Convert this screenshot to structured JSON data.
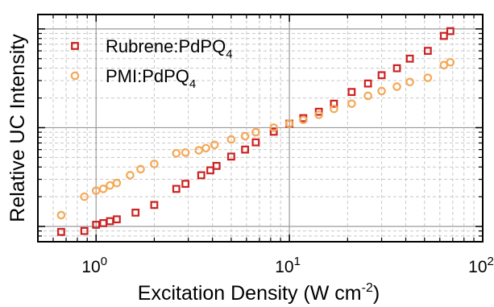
{
  "chart_data": {
    "type": "scatter",
    "xlabel": {
      "main": "Excitation Density (W cm",
      "sup": "-2",
      "tail": ")"
    },
    "ylabel": "Relative UC Intensity",
    "x_scale": "log",
    "y_scale": "log",
    "xlim": [
      0.5,
      100
    ],
    "ylim": [
      0.7,
      140
    ],
    "x_ticks": [
      {
        "value": 1,
        "base": "10",
        "exp": "0"
      },
      {
        "value": 10,
        "base": "10",
        "exp": "1"
      },
      {
        "value": 100,
        "base": "10",
        "exp": "2"
      }
    ],
    "y_major_ticks": [
      1,
      10,
      100
    ],
    "grid": true,
    "legend_position": "top-left",
    "series": [
      {
        "name": "Rubrene:PdPQ",
        "name_sub": "4",
        "color": "#cc2222",
        "marker": "square",
        "points": [
          [
            0.66,
            0.88
          ],
          [
            0.87,
            0.9
          ],
          [
            1.0,
            1.04
          ],
          [
            1.09,
            1.08
          ],
          [
            1.18,
            1.13
          ],
          [
            1.28,
            1.18
          ],
          [
            1.6,
            1.38
          ],
          [
            2.0,
            1.65
          ],
          [
            2.6,
            2.4
          ],
          [
            2.9,
            2.7
          ],
          [
            3.5,
            3.3
          ],
          [
            3.9,
            3.7
          ],
          [
            4.2,
            4.1
          ],
          [
            5.0,
            5.1
          ],
          [
            5.9,
            6.0
          ],
          [
            6.7,
            7.1
          ],
          [
            8.3,
            9.1
          ],
          [
            10.0,
            11.0
          ],
          [
            11.8,
            12.5
          ],
          [
            14.2,
            14.5
          ],
          [
            17.0,
            17.5
          ],
          [
            21.0,
            23.0
          ],
          [
            25.5,
            28.0
          ],
          [
            30.0,
            34.0
          ],
          [
            36.0,
            40.0
          ],
          [
            42.0,
            50.0
          ],
          [
            52.0,
            60.0
          ],
          [
            63.0,
            85.0
          ],
          [
            68.0,
            95.0
          ]
        ]
      },
      {
        "name": "PMI:PdPQ",
        "name_sub": "4",
        "color": "#f5a855",
        "marker": "circle",
        "points": [
          [
            0.66,
            1.3
          ],
          [
            0.87,
            2.0
          ],
          [
            1.0,
            2.3
          ],
          [
            1.09,
            2.4
          ],
          [
            1.18,
            2.6
          ],
          [
            1.28,
            2.75
          ],
          [
            1.5,
            3.3
          ],
          [
            1.7,
            3.8
          ],
          [
            2.0,
            4.3
          ],
          [
            2.6,
            5.5
          ],
          [
            2.9,
            5.6
          ],
          [
            3.4,
            5.9
          ],
          [
            3.7,
            6.2
          ],
          [
            4.1,
            6.7
          ],
          [
            5.0,
            7.6
          ],
          [
            5.9,
            8.2
          ],
          [
            6.7,
            9.0
          ],
          [
            8.3,
            10.0
          ],
          [
            10.0,
            11.0
          ],
          [
            11.8,
            12.0
          ],
          [
            14.2,
            13.5
          ],
          [
            17.0,
            15.5
          ],
          [
            21.0,
            17.5
          ],
          [
            25.5,
            21.0
          ],
          [
            30.0,
            23.5
          ],
          [
            36.0,
            26.0
          ],
          [
            42.0,
            29.0
          ],
          [
            52.0,
            32.0
          ],
          [
            63.0,
            43.0
          ],
          [
            68.0,
            46.0
          ]
        ]
      }
    ]
  }
}
